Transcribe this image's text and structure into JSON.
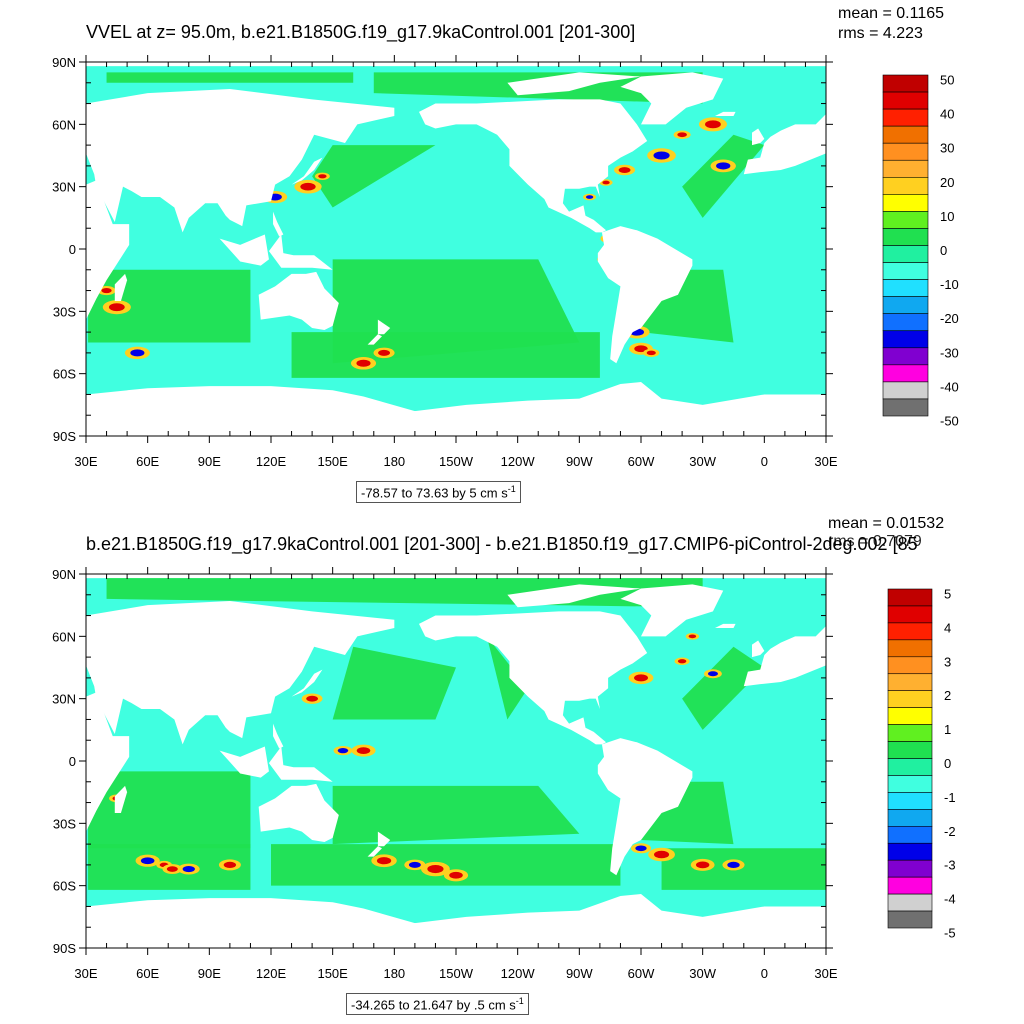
{
  "panels": [
    {
      "title": "VVEL at z=  95.0m, b.e21.B1850G.f19_g17.9kaControl.001 [201-300]",
      "mean": "mean = 0.1165",
      "rms": "rms = 4.223",
      "range_text": "-78.57 to 73.63 by 5 cm s",
      "range_unit_exp": "-1",
      "colorbar_labels": [
        "50",
        "40",
        "30",
        "20",
        "10",
        "0",
        "-10",
        "-20",
        "-30",
        "-40",
        "-50"
      ],
      "colorbar_colors": [
        "#c00000",
        "#e00000",
        "#ff2000",
        "#f07000",
        "#ff9020",
        "#ffb030",
        "#ffd020",
        "#ffff00",
        "#60f020",
        "#20e050",
        "#20f0a0",
        "#40ffe0",
        "#20e0ff",
        "#10a8f0",
        "#1070ff",
        "#0000e8",
        "#8000d0",
        "#ff00e0",
        "#d0d0d0",
        "#707070"
      ],
      "ylabels": [
        "90N",
        "60N",
        "30N",
        "0",
        "30S",
        "60S",
        "90S"
      ],
      "xlabels": [
        "30E",
        "60E",
        "90E",
        "120E",
        "150E",
        "180",
        "150W",
        "120W",
        "90W",
        "60W",
        "30W",
        "0",
        "30E"
      ]
    },
    {
      "title": "b.e21.B1850G.f19_g17.9kaControl.001 [201-300] - b.e21.B1850.f19_g17.CMIP6-piControl-2deg.002 [85",
      "mean": "mean = 0.01532",
      "rms": "rms = 0.7079",
      "range_text": "-34.265 to 21.647 by .5 cm s",
      "range_unit_exp": "-1",
      "colorbar_labels": [
        "5",
        "4",
        "3",
        "2",
        "1",
        "0",
        "-1",
        "-2",
        "-3",
        "-4",
        "-5"
      ],
      "colorbar_colors": [
        "#c00000",
        "#e00000",
        "#ff2000",
        "#f07000",
        "#ff9020",
        "#ffb030",
        "#ffd020",
        "#ffff00",
        "#60f020",
        "#20e050",
        "#20f0a0",
        "#40ffe0",
        "#20e0ff",
        "#10a8f0",
        "#1070ff",
        "#0000e8",
        "#8000d0",
        "#ff00e0",
        "#d0d0d0",
        "#707070"
      ],
      "ylabels": [
        "90N",
        "60N",
        "30N",
        "0",
        "30S",
        "60S",
        "90S"
      ],
      "xlabels": [
        "30E",
        "60E",
        "90E",
        "120E",
        "150E",
        "180",
        "150W",
        "120W",
        "90W",
        "60W",
        "30W",
        "0",
        "30E"
      ]
    }
  ],
  "chart_data": [
    {
      "type": "heatmap",
      "title": "VVEL at z=  95.0m, b.e21.B1850G.f19_g17.9kaControl.001 [201-300]",
      "x_ticks": [
        "30E",
        "60E",
        "90E",
        "120E",
        "150E",
        "180",
        "150W",
        "120W",
        "90W",
        "60W",
        "30W",
        "0",
        "30E"
      ],
      "y_ticks": [
        "90N",
        "60N",
        "30N",
        "0",
        "30S",
        "60S",
        "90S"
      ],
      "xlim": [
        30,
        390
      ],
      "ylim": [
        -90,
        90
      ],
      "color_levels": [
        -50,
        -45,
        -40,
        -35,
        -30,
        -25,
        -20,
        -15,
        -10,
        -5,
        0,
        5,
        10,
        15,
        20,
        25,
        30,
        35,
        40,
        45,
        50
      ],
      "colorbar_ticks": [
        50,
        40,
        30,
        20,
        10,
        0,
        -10,
        -20,
        -30,
        -40,
        -50
      ],
      "value_range": [
        -78.57,
        73.63
      ],
      "contour_interval": 5,
      "units": "cm s-1",
      "mean": 0.1165,
      "rms": 4.223,
      "colors": {
        "ocean_positive_small": "#20e050",
        "ocean_negative_small": "#40ffe0",
        "land": "#ffffff"
      }
    },
    {
      "type": "heatmap",
      "title": "b.e21.B1850G.f19_g17.9kaControl.001 [201-300] - b.e21.B1850.f19_g17.CMIP6-piControl-2deg.002 [85",
      "x_ticks": [
        "30E",
        "60E",
        "90E",
        "120E",
        "150E",
        "180",
        "150W",
        "120W",
        "90W",
        "60W",
        "30W",
        "0",
        "30E"
      ],
      "y_ticks": [
        "90N",
        "60N",
        "30N",
        "0",
        "30S",
        "60S",
        "90S"
      ],
      "xlim": [
        30,
        390
      ],
      "ylim": [
        -90,
        90
      ],
      "color_levels": [
        -5,
        -4.5,
        -4,
        -3.5,
        -3,
        -2.5,
        -2,
        -1.5,
        -1,
        -0.5,
        0,
        0.5,
        1,
        1.5,
        2,
        2.5,
        3,
        3.5,
        4,
        4.5,
        5
      ],
      "colorbar_ticks": [
        5,
        4,
        3,
        2,
        1,
        0,
        -1,
        -2,
        -3,
        -4,
        -5
      ],
      "value_range": [
        -34.265,
        21.647
      ],
      "contour_interval": 0.5,
      "units": "cm s-1",
      "mean": 0.01532,
      "rms": 0.7079,
      "colors": {
        "ocean_positive_small": "#20e050",
        "ocean_negative_small": "#40ffe0",
        "land": "#ffffff"
      }
    }
  ]
}
